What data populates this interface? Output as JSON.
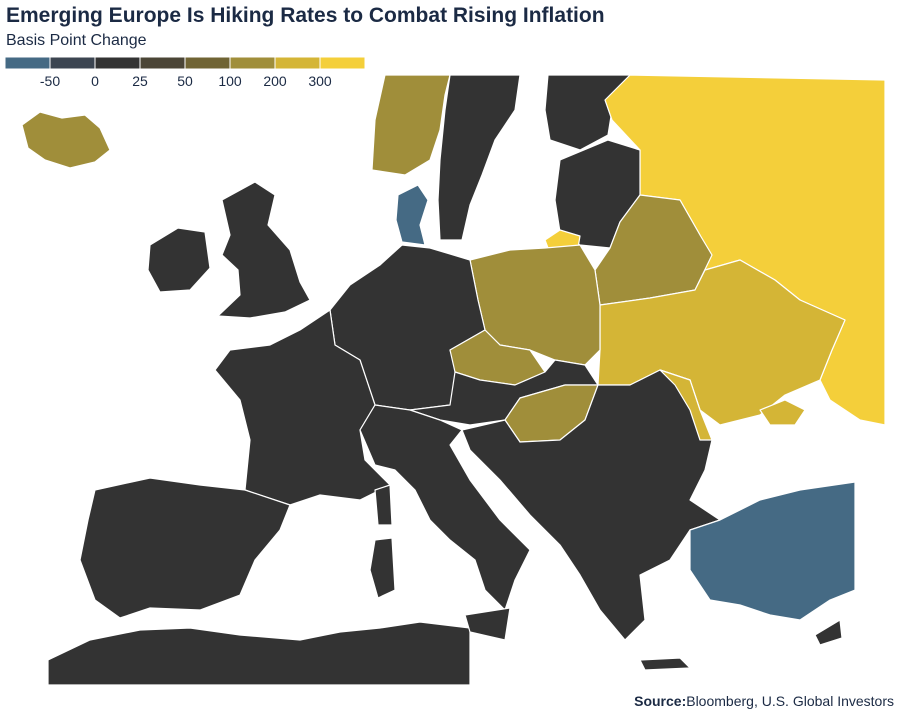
{
  "title": "Emerging Europe Is Hiking Rates to Combat Rising Inflation",
  "subtitle": "Basis Point Change",
  "legend": {
    "colors": [
      "#456a84",
      "#3c4551",
      "#333333",
      "#4b4536",
      "#706434",
      "#a08e3a",
      "#d4b536",
      "#f4cf3a"
    ],
    "ticks": [
      -50,
      0,
      25,
      50,
      100,
      200,
      300
    ]
  },
  "source": {
    "label": "Source:",
    "text": "Bloomberg, U.S. Global Investors"
  }
}
